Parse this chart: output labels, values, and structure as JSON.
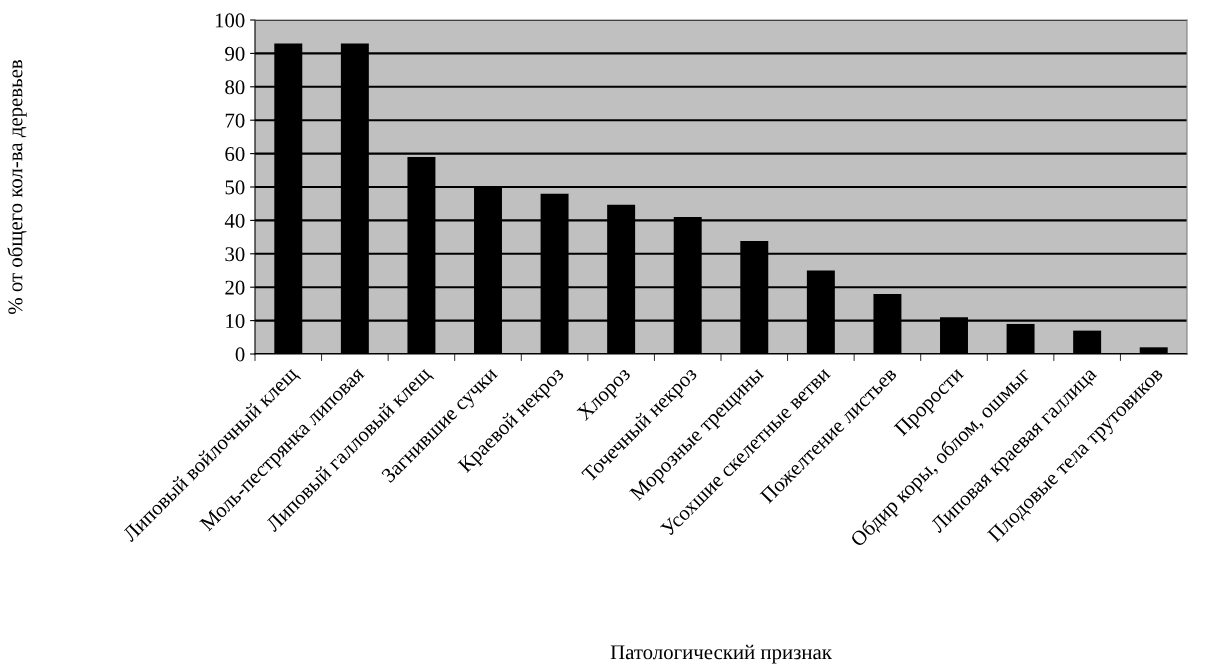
{
  "chart_data": {
    "type": "bar",
    "categories": [
      "Липовый войлочный клещ",
      "Моль-пестрянка липовая",
      "Липовый галловый клещ",
      "Загнившие сучки",
      "Краевой некроз",
      "Хлороз",
      "Точечный некроз",
      "Морозные трещины",
      "Усохшие скелетные ветви",
      "Пожелтение листьев",
      "Прорости",
      "Обдир коры, облом, ошмыг",
      "Липовая краевая галлица",
      "Плодовые тела трутовиков"
    ],
    "values": [
      93,
      93,
      59,
      50,
      48,
      44.7,
      41,
      33.8,
      25,
      18,
      11,
      9,
      7,
      2
    ],
    "color": "#000000",
    "xlabel": "Патологический признак",
    "ylabel": "% от общего кол-ва деревьев",
    "ylim": [
      0,
      100
    ],
    "yticks": [
      0,
      10,
      20,
      30,
      40,
      50,
      60,
      70,
      80,
      90,
      100
    ],
    "grid": "y",
    "legend": false
  }
}
